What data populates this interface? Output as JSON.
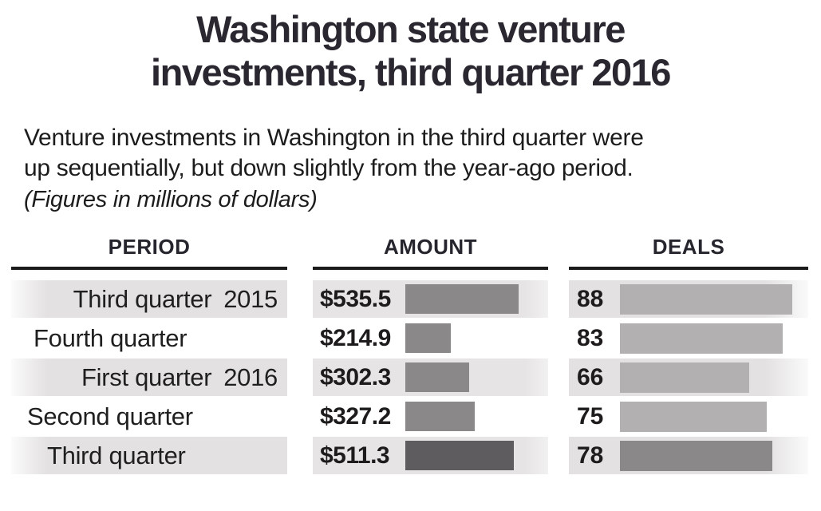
{
  "title": {
    "line1": "Washington state venture",
    "line2": "investments, third quarter 2016"
  },
  "subtitle": {
    "line1": "Venture investments in Washington in the third quarter were",
    "line2": "up sequentially, but down slightly from the year-ago period.",
    "note": "(Figures in millions of dollars)"
  },
  "table": {
    "columns": [
      {
        "label": "PERIOD"
      },
      {
        "label": "AMOUNT"
      },
      {
        "label": "DEALS"
      }
    ],
    "rows": [
      {
        "period": "Third quarter",
        "year": "2015",
        "amount_label": "$535.5",
        "amount_value": 535.5,
        "deals": 88,
        "shaded": true,
        "emphasis": false
      },
      {
        "period": "Fourth quarter",
        "year": "",
        "amount_label": "$214.9",
        "amount_value": 214.9,
        "deals": 83,
        "shaded": false,
        "emphasis": false
      },
      {
        "period": "First quarter",
        "year": "2016",
        "amount_label": "$302.3",
        "amount_value": 302.3,
        "deals": 66,
        "shaded": true,
        "emphasis": false
      },
      {
        "period": "Second quarter",
        "year": "",
        "amount_label": "$327.2",
        "amount_value": 327.2,
        "deals": 75,
        "shaded": false,
        "emphasis": false
      },
      {
        "period": "Third quarter",
        "year": "",
        "amount_label": "$511.3",
        "amount_value": 511.3,
        "deals": 78,
        "shaded": true,
        "emphasis": true
      }
    ]
  },
  "colors": {
    "amount_bar": "#8a8888",
    "amount_bar_highlight": "#5e5c5e",
    "deals_bar": "#b2b0b0",
    "deals_bar_highlight": "#8a8888",
    "row_shade": "#e3e1e1",
    "title_text": "#2a2730",
    "rule": "#1b1b1b"
  },
  "chart_data": {
    "type": "bar",
    "orientation": "horizontal",
    "title": "Washington state venture investments, third quarter 2016",
    "subtitle": "Venture investments in Washington in the third quarter were up sequentially, but down slightly from the year-ago period.",
    "note": "(Figures in millions of dollars)",
    "categories": [
      "Third quarter 2015",
      "Fourth quarter",
      "First quarter 2016",
      "Second quarter",
      "Third quarter"
    ],
    "series": [
      {
        "name": "Amount ($ millions)",
        "values": [
          535.5,
          214.9,
          302.3,
          327.2,
          511.3
        ]
      },
      {
        "name": "Deals",
        "values": [
          88,
          83,
          66,
          75,
          78
        ]
      }
    ],
    "highlighted_category": "Third quarter",
    "data_labels": true,
    "grid": false,
    "legend_position": "none"
  }
}
